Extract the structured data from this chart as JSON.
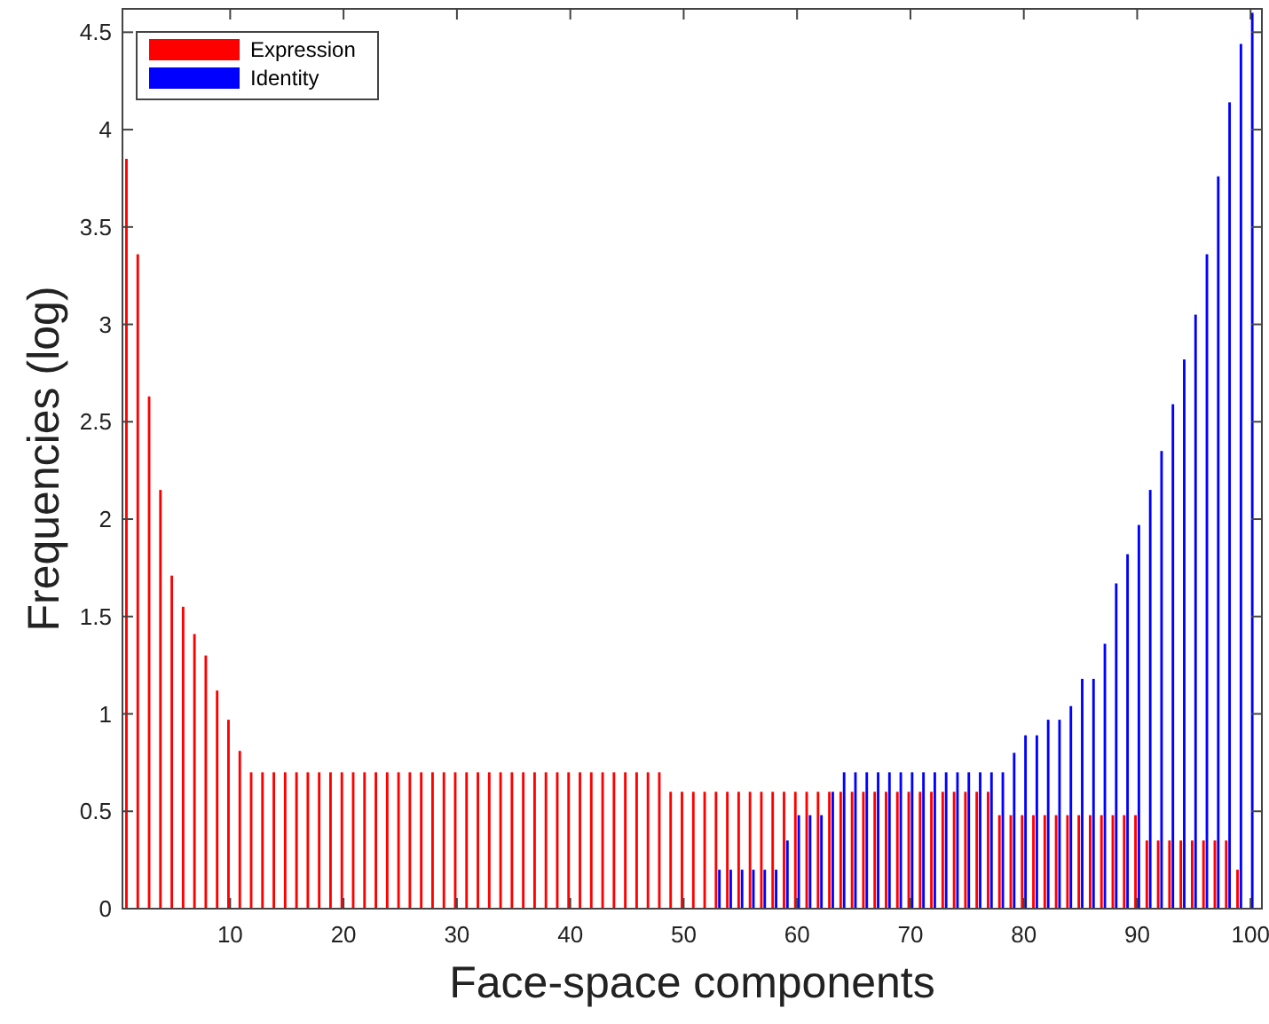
{
  "chart_data": {
    "type": "bar",
    "xlabel": "Face-space components",
    "ylabel": "Frequencies (log)",
    "x": [
      1,
      2,
      3,
      4,
      5,
      6,
      7,
      8,
      9,
      10,
      11,
      12,
      13,
      14,
      15,
      16,
      17,
      18,
      19,
      20,
      21,
      22,
      23,
      24,
      25,
      26,
      27,
      28,
      29,
      30,
      31,
      32,
      33,
      34,
      35,
      36,
      37,
      38,
      39,
      40,
      41,
      42,
      43,
      44,
      45,
      46,
      47,
      48,
      49,
      50,
      51,
      52,
      53,
      54,
      55,
      56,
      57,
      58,
      59,
      60,
      61,
      62,
      63,
      64,
      65,
      66,
      67,
      68,
      69,
      70,
      71,
      72,
      73,
      74,
      75,
      76,
      77,
      78,
      79,
      80,
      81,
      82,
      83,
      84,
      85,
      86,
      87,
      88,
      89,
      90,
      91,
      92,
      93,
      94,
      95,
      96,
      97,
      98,
      99,
      100
    ],
    "series": [
      {
        "name": "Expression",
        "color": "#ff0000",
        "values": [
          3.85,
          3.36,
          2.63,
          2.15,
          1.71,
          1.55,
          1.41,
          1.3,
          1.12,
          0.97,
          0.81,
          0.7,
          0.7,
          0.7,
          0.7,
          0.7,
          0.7,
          0.7,
          0.7,
          0.7,
          0.7,
          0.7,
          0.7,
          0.7,
          0.7,
          0.7,
          0.7,
          0.7,
          0.7,
          0.7,
          0.7,
          0.7,
          0.7,
          0.7,
          0.7,
          0.7,
          0.7,
          0.7,
          0.7,
          0.7,
          0.7,
          0.7,
          0.7,
          0.7,
          0.7,
          0.7,
          0.7,
          0.7,
          0.6,
          0.6,
          0.6,
          0.6,
          0.6,
          0.6,
          0.6,
          0.6,
          0.6,
          0.6,
          0.6,
          0.6,
          0.6,
          0.6,
          0.6,
          0.6,
          0.6,
          0.6,
          0.6,
          0.6,
          0.6,
          0.6,
          0.6,
          0.6,
          0.6,
          0.6,
          0.6,
          0.6,
          0.6,
          0.48,
          0.48,
          0.48,
          0.48,
          0.48,
          0.48,
          0.48,
          0.48,
          0.48,
          0.48,
          0.48,
          0.48,
          0.48,
          0.35,
          0.35,
          0.35,
          0.35,
          0.35,
          0.35,
          0.35,
          0.35,
          0.2,
          0
        ]
      },
      {
        "name": "Identity",
        "color": "#0000ff",
        "values": [
          null,
          null,
          null,
          null,
          null,
          null,
          null,
          null,
          null,
          null,
          null,
          null,
          null,
          null,
          null,
          null,
          null,
          null,
          null,
          null,
          null,
          null,
          null,
          null,
          null,
          null,
          null,
          null,
          null,
          null,
          null,
          null,
          null,
          null,
          null,
          null,
          null,
          null,
          null,
          null,
          null,
          null,
          null,
          null,
          null,
          null,
          null,
          null,
          null,
          null,
          null,
          null,
          0.2,
          0.2,
          0.2,
          0.2,
          0.2,
          0.2,
          0.35,
          0.48,
          0.48,
          0.48,
          0.6,
          0.7,
          0.7,
          0.7,
          0.7,
          0.7,
          0.7,
          0.7,
          0.7,
          0.7,
          0.7,
          0.7,
          0.7,
          0.7,
          0.7,
          0.7,
          0.8,
          0.89,
          0.89,
          0.97,
          0.97,
          1.04,
          1.18,
          1.18,
          1.36,
          1.67,
          1.82,
          1.97,
          2.15,
          2.35,
          2.59,
          2.82,
          3.05,
          3.36,
          3.76,
          4.14,
          4.44,
          4.6
        ]
      }
    ],
    "xlim": [
      0.5,
      101
    ],
    "xticks": [
      10,
      20,
      30,
      40,
      50,
      60,
      70,
      80,
      90,
      100
    ],
    "ylim": [
      0,
      4.62
    ],
    "yticks": [
      0,
      0.5,
      1,
      1.5,
      2,
      2.5,
      3,
      3.5,
      4,
      4.5
    ],
    "legend": "top left",
    "grid": false
  }
}
